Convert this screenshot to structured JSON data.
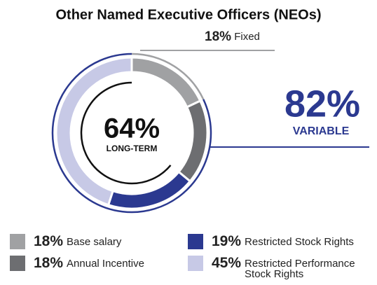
{
  "chart_data": {
    "type": "donut",
    "title": "Other Named Executive Officers (NEOs)",
    "categories": [
      "Base salary",
      "Annual Incentive",
      "Restricted Stock Rights",
      "Restricted Performance Stock Rights"
    ],
    "values": [
      18,
      18,
      19,
      45
    ],
    "value_labels": [
      "18%",
      "18%",
      "19%",
      "45%"
    ],
    "colors": [
      "#a0a1a3",
      "#6d6e71",
      "#2b3990",
      "#c7c9e6"
    ],
    "annotations": [
      {
        "value": 18,
        "value_label": "18%",
        "text": "Fixed",
        "color": "#a0a1a3"
      },
      {
        "value": 82,
        "value_label": "82%",
        "text": "VARIABLE",
        "color": "#2b3990"
      },
      {
        "value": 64,
        "value_label": "64%",
        "text": "LONG-TERM",
        "color": "#111111"
      }
    ]
  }
}
